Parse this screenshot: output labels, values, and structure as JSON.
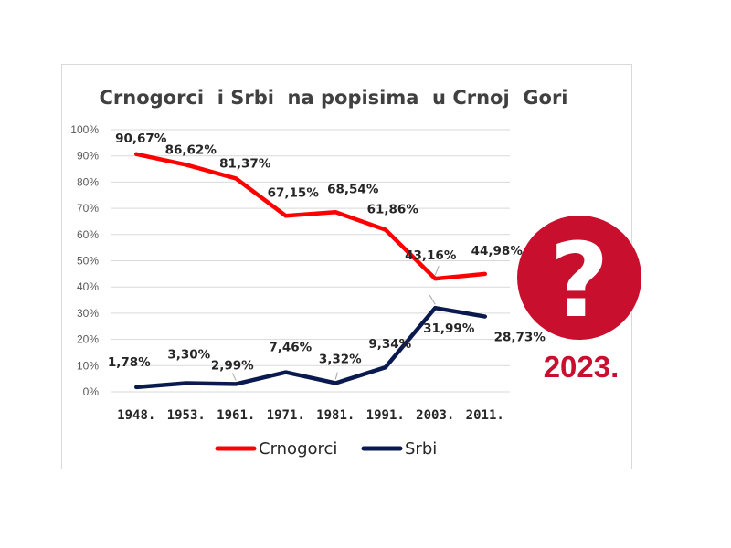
{
  "chart_data": {
    "type": "line",
    "title": "Crnogorci  i Srbi  na popisima  u Crnoj  Gori",
    "categories": [
      "1948.",
      "1953.",
      "1961.",
      "1971.",
      "1981.",
      "1991.",
      "2003.",
      "2011."
    ],
    "ylim": [
      0,
      100
    ],
    "y_ticks": [
      "0%",
      "10%",
      "20%",
      "30%",
      "40%",
      "50%",
      "60%",
      "70%",
      "80%",
      "90%",
      "100%"
    ],
    "grid": true,
    "legend_position": "bottom",
    "series": [
      {
        "name": "Crnogorci",
        "color": "#ff0000",
        "values": [
          90.67,
          86.62,
          81.37,
          67.15,
          68.54,
          61.86,
          43.16,
          44.98
        ],
        "labels": [
          "90,67%",
          "86,62%",
          "81,37%",
          "67,15%",
          "68,54%",
          "61,86%",
          "43,16%",
          "44,98%"
        ]
      },
      {
        "name": "Srbi",
        "color": "#0a1a4f",
        "values": [
          1.78,
          3.3,
          2.99,
          7.46,
          3.32,
          9.34,
          31.99,
          28.73
        ],
        "labels": [
          "1,78%",
          "3,30%",
          "2,99%",
          "7,46%",
          "3,32%",
          "9,34%",
          "31,99%",
          "28,73%"
        ]
      }
    ]
  },
  "badge": {
    "symbol": "?",
    "year": "2023.",
    "color": "#c8102e"
  }
}
